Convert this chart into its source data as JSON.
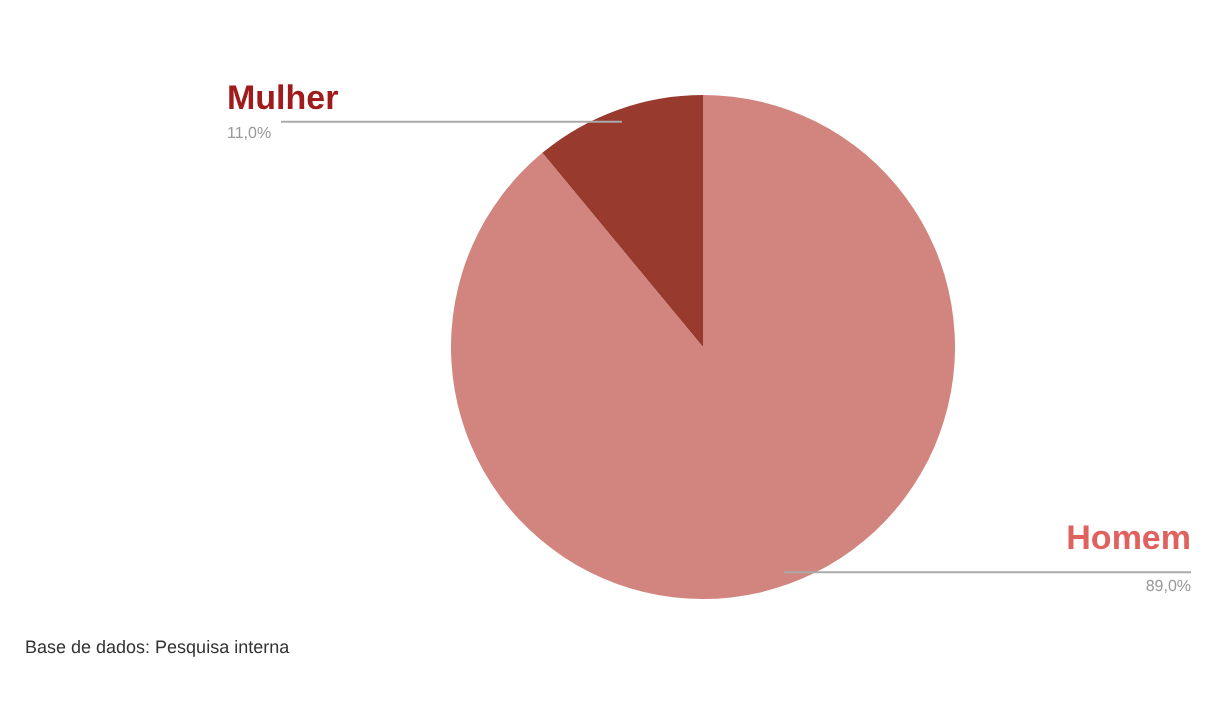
{
  "chart_data": {
    "type": "pie",
    "categories": [
      "Homem",
      "Mulher"
    ],
    "values": [
      89.0,
      11.0
    ],
    "colors": [
      "#d2857e",
      "#993a2e"
    ],
    "value_labels": [
      "89,0%",
      "11,0%"
    ],
    "annotations": [
      "Base de dados: Pesquisa interna"
    ]
  }
}
